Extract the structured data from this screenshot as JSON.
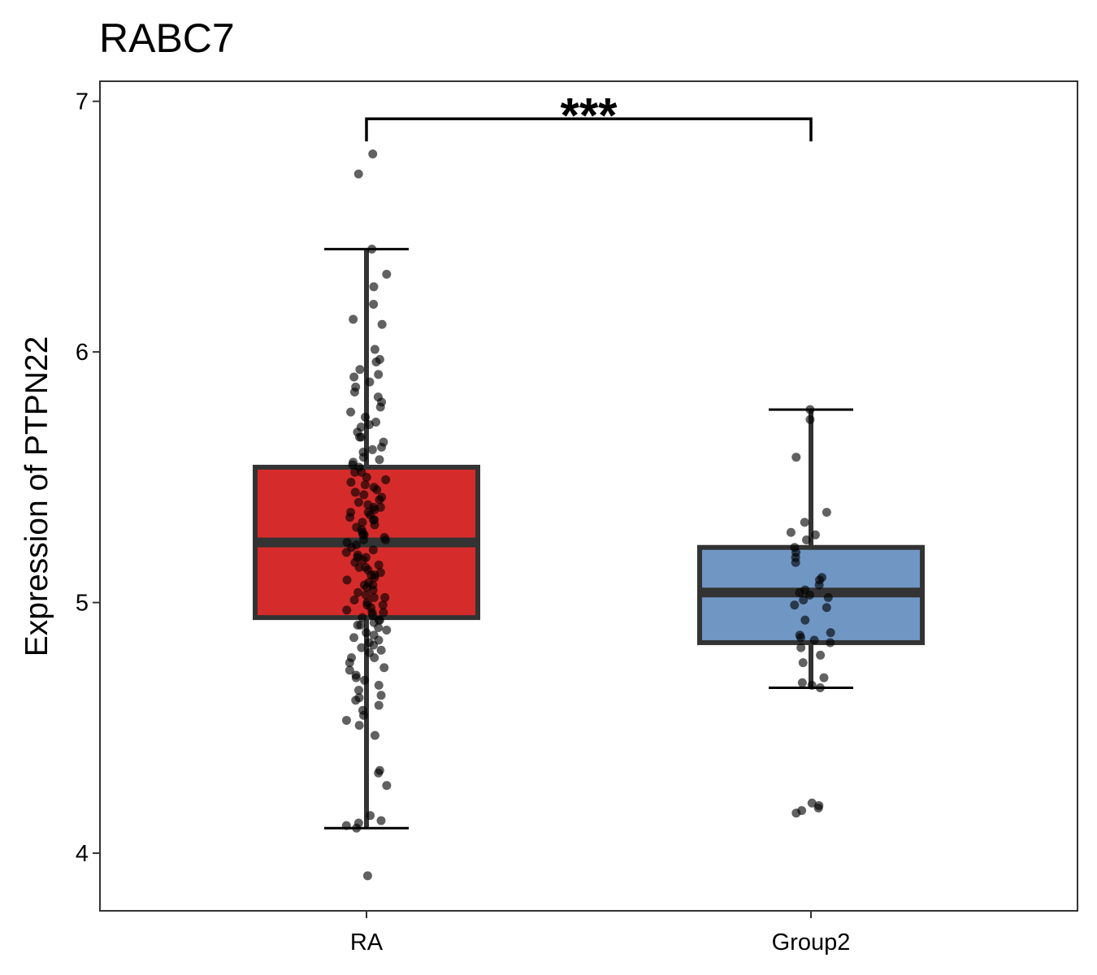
{
  "chart_data": {
    "type": "box",
    "title": "RABC7",
    "xlabel": "",
    "ylabel": "Expression of PTPN22",
    "ylim": [
      3.77,
      7.08
    ],
    "yticks": [
      4,
      5,
      6,
      7
    ],
    "categories": [
      "RA",
      "Group2"
    ],
    "significance": {
      "label": "***",
      "between": [
        "RA",
        "Group2"
      ],
      "y": 6.93
    },
    "grid": false,
    "legend": "none",
    "boxes": [
      {
        "name": "RA",
        "color": "#D62B2B",
        "whisker_low": 4.1,
        "q1": 4.94,
        "median": 5.24,
        "q3": 5.54,
        "whisker_high": 6.41
      },
      {
        "name": "Group2",
        "color": "#7096C4",
        "whisker_low": 4.66,
        "q1": 4.84,
        "median": 5.04,
        "q3": 5.22,
        "whisker_high": 5.77
      }
    ],
    "points": {
      "RA": [
        6.79,
        6.71,
        6.41,
        6.31,
        6.26,
        6.19,
        6.13,
        6.11,
        6.01,
        5.97,
        5.96,
        5.93,
        5.91,
        5.9,
        5.88,
        5.86,
        5.84,
        5.82,
        5.8,
        5.78,
        5.76,
        5.74,
        5.72,
        5.7,
        5.68,
        5.66,
        5.64,
        5.62,
        5.6,
        5.58,
        5.57,
        5.56,
        5.55,
        5.54,
        5.52,
        5.5,
        5.49,
        5.47,
        5.45,
        5.44,
        5.43,
        5.42,
        5.41,
        5.4,
        5.39,
        5.38,
        5.37,
        5.36,
        5.35,
        5.34,
        5.33,
        5.32,
        5.31,
        5.3,
        5.29,
        5.28,
        5.27,
        5.26,
        5.25,
        5.24,
        5.23,
        5.22,
        5.21,
        5.2,
        5.19,
        5.18,
        5.17,
        5.16,
        5.15,
        5.14,
        5.13,
        5.12,
        5.11,
        5.1,
        5.09,
        5.08,
        5.07,
        5.06,
        5.05,
        5.04,
        5.03,
        5.02,
        5.01,
        5.0,
        4.99,
        4.98,
        4.97,
        4.96,
        4.95,
        4.94,
        4.93,
        4.92,
        4.91,
        4.9,
        4.89,
        4.88,
        4.86,
        4.84,
        4.83,
        4.81,
        4.8,
        4.78,
        4.76,
        4.74,
        4.73,
        4.71,
        4.69,
        4.67,
        4.65,
        4.63,
        4.61,
        4.59,
        4.57,
        4.55,
        4.53,
        4.51,
        4.47,
        4.33,
        4.32,
        4.27,
        4.15,
        4.13,
        4.12,
        4.11,
        4.1,
        3.91,
        5.61,
        5.46,
        5.33,
        5.18,
        5.07,
        4.96,
        4.87,
        4.78,
        5.71,
        5.52,
        5.38,
        5.27,
        5.14,
        5.02,
        4.91,
        4.82,
        4.7,
        5.66,
        5.48,
        5.36,
        5.25,
        5.11,
        4.99,
        4.93,
        4.85,
        4.62
      ],
      "Group2": [
        5.77,
        5.73,
        5.58,
        5.36,
        5.32,
        5.28,
        5.27,
        5.25,
        5.22,
        5.2,
        5.18,
        5.16,
        5.1,
        5.09,
        5.07,
        5.05,
        5.04,
        5.03,
        5.02,
        5.01,
        4.99,
        4.98,
        4.93,
        4.88,
        4.87,
        4.86,
        4.85,
        4.84,
        4.82,
        4.79,
        4.76,
        4.7,
        4.68,
        4.67,
        4.66,
        4.2,
        4.19,
        4.18,
        4.17,
        4.16
      ]
    }
  }
}
